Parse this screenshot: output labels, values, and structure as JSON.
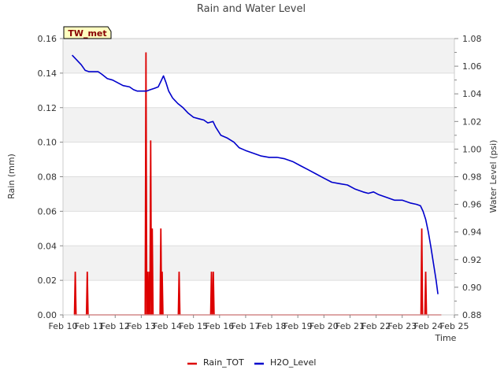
{
  "chart_data": {
    "type": "line",
    "title": "Rain and Water Level",
    "station_label": "TW_met",
    "xlabel": "Time",
    "ylabel_left": "Rain (mm)",
    "ylabel_right": "Water Level (psi)",
    "x_ticks": [
      "Feb 10",
      "Feb 11",
      "Feb 12",
      "Feb 13",
      "Feb 14",
      "Feb 15",
      "Feb 16",
      "Feb 17",
      "Feb 18",
      "Feb 19",
      "Feb 20",
      "Feb 21",
      "Feb 22",
      "Feb 23",
      "Feb 24",
      "Feb 25"
    ],
    "xlim": [
      0,
      15
    ],
    "ylim_left": [
      0.0,
      0.16
    ],
    "ylim_right": [
      0.88,
      1.08
    ],
    "y_ticks_left": [
      "0.00",
      "0.02",
      "0.04",
      "0.06",
      "0.08",
      "0.10",
      "0.12",
      "0.14",
      "0.16"
    ],
    "y_ticks_right": [
      "0.88",
      "0.90",
      "0.92",
      "0.94",
      "0.96",
      "0.98",
      "1.00",
      "1.02",
      "1.04",
      "1.06",
      "1.08"
    ],
    "grid": true,
    "legend_position": "bottom-center",
    "series": [
      {
        "name": "Rain_TOT",
        "axis": "left",
        "color": "#dd0000",
        "spikes": [
          {
            "x": 0.47,
            "y": 0.025
          },
          {
            "x": 0.93,
            "y": 0.025
          },
          {
            "x": 3.18,
            "y": 0.152
          },
          {
            "x": 3.24,
            "y": 0.025
          },
          {
            "x": 3.3,
            "y": 0.025
          },
          {
            "x": 3.36,
            "y": 0.101
          },
          {
            "x": 3.42,
            "y": 0.05
          },
          {
            "x": 3.75,
            "y": 0.05
          },
          {
            "x": 3.8,
            "y": 0.025
          },
          {
            "x": 4.45,
            "y": 0.025
          },
          {
            "x": 5.69,
            "y": 0.025
          },
          {
            "x": 5.76,
            "y": 0.025
          },
          {
            "x": 13.75,
            "y": 0.05
          },
          {
            "x": 13.9,
            "y": 0.025
          }
        ]
      },
      {
        "name": "H2O_Level",
        "axis": "right",
        "color": "#0000cc",
        "points": [
          [
            0.35,
            1.068
          ],
          [
            0.5,
            1.065
          ],
          [
            0.7,
            1.061
          ],
          [
            0.85,
            1.057
          ],
          [
            1.0,
            1.056
          ],
          [
            1.2,
            1.056
          ],
          [
            1.35,
            1.056
          ],
          [
            1.5,
            1.054
          ],
          [
            1.7,
            1.051
          ],
          [
            1.9,
            1.05
          ],
          [
            2.1,
            1.048
          ],
          [
            2.3,
            1.046
          ],
          [
            2.55,
            1.045
          ],
          [
            2.7,
            1.043
          ],
          [
            2.85,
            1.042
          ],
          [
            3.0,
            1.042
          ],
          [
            3.2,
            1.042
          ],
          [
            3.35,
            1.043
          ],
          [
            3.5,
            1.044
          ],
          [
            3.65,
            1.045
          ],
          [
            3.75,
            1.049
          ],
          [
            3.85,
            1.053
          ],
          [
            3.95,
            1.048
          ],
          [
            4.05,
            1.042
          ],
          [
            4.2,
            1.037
          ],
          [
            4.4,
            1.033
          ],
          [
            4.6,
            1.03
          ],
          [
            4.8,
            1.026
          ],
          [
            5.0,
            1.023
          ],
          [
            5.2,
            1.022
          ],
          [
            5.4,
            1.021
          ],
          [
            5.55,
            1.019
          ],
          [
            5.75,
            1.02
          ],
          [
            5.85,
            1.016
          ],
          [
            6.05,
            1.01
          ],
          [
            6.3,
            1.008
          ],
          [
            6.55,
            1.005
          ],
          [
            6.75,
            1.001
          ],
          [
            7.0,
            0.999
          ],
          [
            7.3,
            0.997
          ],
          [
            7.6,
            0.995
          ],
          [
            7.9,
            0.994
          ],
          [
            8.2,
            0.994
          ],
          [
            8.5,
            0.993
          ],
          [
            8.8,
            0.991
          ],
          [
            9.1,
            0.988
          ],
          [
            9.4,
            0.985
          ],
          [
            9.7,
            0.982
          ],
          [
            10.0,
            0.979
          ],
          [
            10.3,
            0.976
          ],
          [
            10.6,
            0.975
          ],
          [
            10.9,
            0.974
          ],
          [
            11.2,
            0.971
          ],
          [
            11.5,
            0.969
          ],
          [
            11.7,
            0.968
          ],
          [
            11.9,
            0.969
          ],
          [
            12.1,
            0.967
          ],
          [
            12.4,
            0.965
          ],
          [
            12.7,
            0.963
          ],
          [
            13.0,
            0.963
          ],
          [
            13.3,
            0.961
          ],
          [
            13.55,
            0.96
          ],
          [
            13.7,
            0.959
          ],
          [
            13.8,
            0.955
          ],
          [
            13.9,
            0.949
          ],
          [
            14.0,
            0.94
          ],
          [
            14.1,
            0.929
          ],
          [
            14.2,
            0.917
          ],
          [
            14.3,
            0.905
          ],
          [
            14.37,
            0.895
          ]
        ]
      }
    ]
  }
}
